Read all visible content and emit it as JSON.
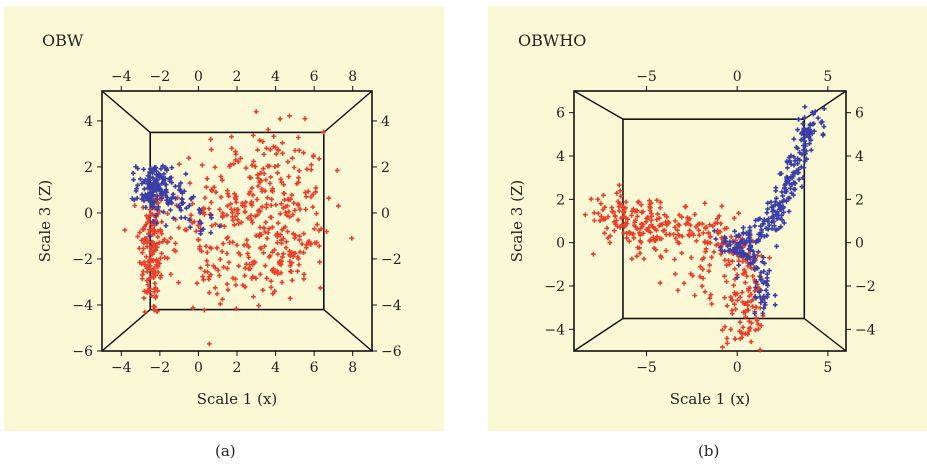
{
  "chart_data": [
    {
      "type": "scatter",
      "title": "OBW",
      "xlabel": "Scale 1 (x)",
      "ylabel": "Scale 3 (Z)",
      "xlim": [
        -5,
        9
      ],
      "ylim": [
        -6,
        5.3
      ],
      "x_ticks": [
        -4,
        -2,
        0,
        2,
        4,
        6,
        8
      ],
      "y_ticks": [
        4,
        2,
        0,
        -2,
        -4,
        -6
      ],
      "right_ticks": [
        4,
        2,
        0,
        -2,
        -4,
        -6
      ],
      "inner_box": {
        "x": [
          -2.5,
          6.5
        ],
        "y": [
          -4.2,
          3.5
        ]
      },
      "grid": false,
      "series": [
        {
          "color": "#e8412c",
          "marker": "cross",
          "clusters": [
            {
              "cx": -2.4,
              "cy": -1.5,
              "sx": 0.35,
              "sy": 1.6,
              "n": 160
            },
            {
              "cx": 3.2,
              "cy": 0.6,
              "sx": 1.7,
              "sy": 1.5,
              "n": 260
            },
            {
              "cx": 4.7,
              "cy": -2.0,
              "sx": 0.9,
              "sy": 0.6,
              "n": 70
            },
            {
              "cx": 0.3,
              "cy": -1.2,
              "sx": 1.4,
              "sy": 1.1,
              "n": 60
            },
            {
              "cx": 1.8,
              "cy": -2.8,
              "sx": 1.0,
              "sy": 0.7,
              "n": 40
            }
          ]
        },
        {
          "color": "#3b3fa8",
          "marker": "cross",
          "clusters": [
            {
              "cx": -2.3,
              "cy": 1.1,
              "sx": 0.45,
              "sy": 0.55,
              "n": 130
            },
            {
              "cx": -1.1,
              "cy": 0.6,
              "sx": 0.6,
              "sy": 0.5,
              "n": 40
            },
            {
              "cx": 0.5,
              "cy": -0.5,
              "sx": 0.4,
              "sy": 0.25,
              "n": 12
            }
          ]
        }
      ]
    },
    {
      "type": "scatter",
      "title": "OBWHO",
      "xlabel": "Scale 1 (x)",
      "ylabel": "Scale 3 (Z)",
      "xlim": [
        -9,
        6
      ],
      "ylim": [
        -5,
        7
      ],
      "x_ticks": [
        -5,
        0,
        5
      ],
      "y_ticks": [
        6,
        4,
        2,
        0,
        -2,
        -4
      ],
      "right_ticks": [
        6,
        4,
        2,
        0,
        -2,
        -4
      ],
      "inner_box": {
        "x": [
          -6.3,
          3.7
        ],
        "y": [
          -3.5,
          5.7
        ]
      },
      "grid": false,
      "series": [
        {
          "color": "#e8412c",
          "marker": "cross",
          "paths": [
            {
              "pts": [
                [
                  -8.0,
                  1.5
                ],
                [
                  -6.0,
                  1.2
                ],
                [
                  -3.5,
                  0.8
                ],
                [
                  -1.5,
                  0.4
                ],
                [
                  0.0,
                  0.0
                ],
                [
                  0.6,
                  -1.0
                ],
                [
                  0.6,
                  -2.5
                ],
                [
                  0.3,
                  -4.4
                ]
              ],
              "spread": 0.55,
              "n": 330
            }
          ],
          "clusters": [
            {
              "cx": -5.5,
              "cy": 0.3,
              "sx": 1.2,
              "sy": 0.7,
              "n": 50
            },
            {
              "cx": -2.0,
              "cy": -1.6,
              "sx": 1.0,
              "sy": 0.6,
              "n": 25
            }
          ]
        },
        {
          "color": "#3b3fa8",
          "marker": "cross",
          "paths": [
            {
              "pts": [
                [
                  0.0,
                  0.0
                ],
                [
                  1.5,
                  0.6
                ],
                [
                  2.4,
                  1.5
                ],
                [
                  3.0,
                  3.0
                ],
                [
                  3.6,
                  4.5
                ],
                [
                  4.3,
                  6.0
                ]
              ],
              "spread": 0.3,
              "n": 220
            },
            {
              "pts": [
                [
                  -0.8,
                  0.0
                ],
                [
                  0.5,
                  -0.5
                ],
                [
                  1.2,
                  -1.3
                ],
                [
                  1.8,
                  -2.6
                ],
                [
                  1.2,
                  -3.0
                ]
              ],
              "spread": 0.3,
              "n": 90
            }
          ]
        }
      ]
    }
  ],
  "captions": [
    "(a)",
    "(b)"
  ]
}
